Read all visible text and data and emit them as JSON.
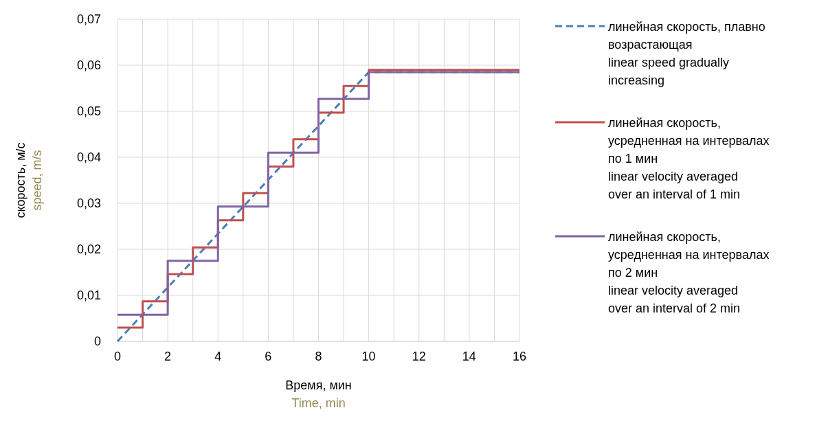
{
  "chart_data": {
    "type": "step",
    "xlabel": "Время, мин\nTime, min",
    "ylabel": "скорость, м/с\nspeed, m/s",
    "xlim": [
      0,
      16
    ],
    "xticks": [
      0,
      2,
      4,
      6,
      8,
      10,
      12,
      14,
      16
    ],
    "ylim": [
      0,
      0.07
    ],
    "yticks": [
      0,
      {
        "value": 0.01,
        "label": "0,01"
      },
      {
        "value": 0.02,
        "label": "0,02"
      },
      {
        "value": 0.03,
        "label": "0,03"
      },
      {
        "value": 0.04,
        "label": "0,04"
      },
      {
        "value": 0.05,
        "label": "0,05"
      },
      {
        "value": 0.06,
        "label": "0,06"
      },
      {
        "value": 0.07,
        "label": "0,07"
      }
    ],
    "grid": true,
    "legend": "right",
    "series": [
      {
        "name": "линейная скорость, плавно возрастающая\nlinear speed gradually increasing",
        "type": "line",
        "line_style": "dashed",
        "color": "#4a7ebb",
        "x": [
          0,
          10,
          16
        ],
        "values": [
          0,
          0.0585,
          0.0585
        ]
      },
      {
        "name": "линейная скорость, усредненная на интервалах по 1 мин\nlinear velocity averaged over an interval of 1 min",
        "type": "step",
        "line_style": "solid",
        "color": "#c0504d",
        "x": [
          0,
          1,
          2,
          3,
          4,
          5,
          6,
          7,
          8,
          9,
          10,
          16
        ],
        "values": [
          0.003,
          0.0087,
          0.0146,
          0.0204,
          0.0263,
          0.0322,
          0.038,
          0.0439,
          0.0497,
          0.0555,
          0.059,
          0.059
        ]
      },
      {
        "name": "линейная скорость, усредненная на интервалах по 2 мин\nlinear velocity averaged over an interval of 2 min",
        "type": "step",
        "line_style": "solid",
        "color": "#8064a2",
        "x": [
          0,
          2,
          4,
          6,
          8,
          10,
          16
        ],
        "values": [
          0.0058,
          0.0175,
          0.0293,
          0.041,
          0.0527,
          0.0585,
          0.0585
        ]
      }
    ]
  }
}
